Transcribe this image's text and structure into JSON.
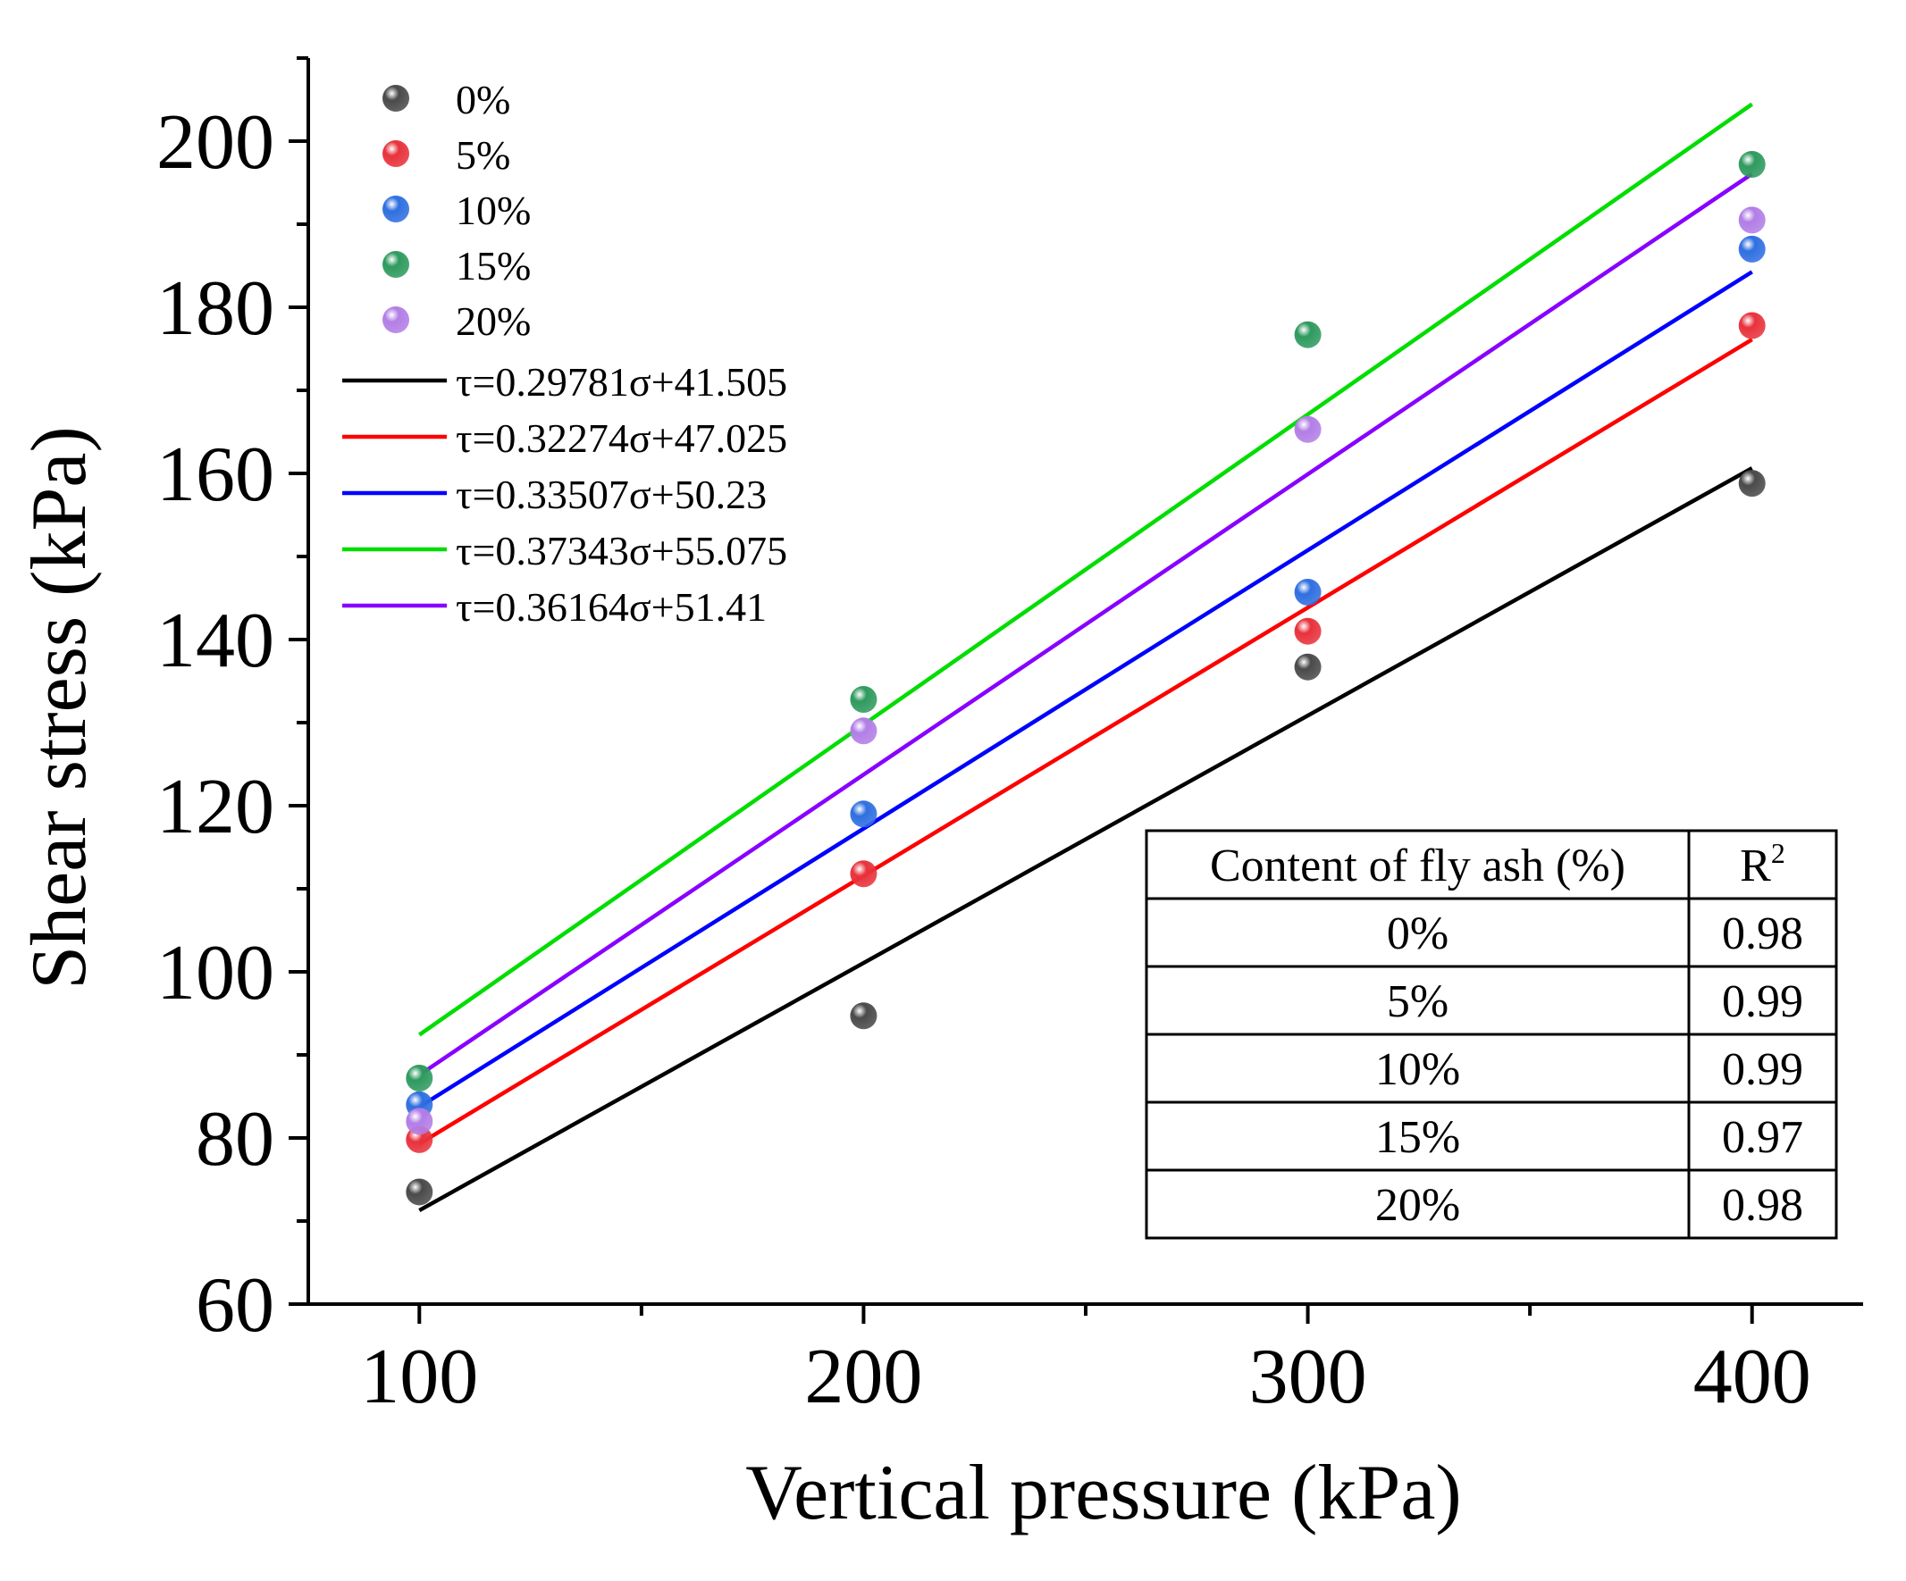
{
  "chart_data": {
    "type": "scatter",
    "xlabel": "Vertical pressure (kPa)",
    "ylabel": "Shear stress (kPa)",
    "xlim": [
      75,
      425
    ],
    "ylim": [
      60,
      210
    ],
    "x_ticks": [
      100,
      200,
      300,
      400
    ],
    "y_ticks": [
      60,
      80,
      100,
      120,
      140,
      160,
      180,
      200
    ],
    "y_minor_step": 10,
    "x": [
      100,
      200,
      300,
      400
    ],
    "series": [
      {
        "name": "0%",
        "color": "#4a4a4a",
        "values": [
          73.5,
          94.7,
          136.7,
          158.8
        ]
      },
      {
        "name": "5%",
        "color": "#e8323c",
        "values": [
          79.8,
          111.8,
          141.0,
          177.8
        ]
      },
      {
        "name": "10%",
        "color": "#2f6fe0",
        "values": [
          84.0,
          119.0,
          145.7,
          187.0
        ]
      },
      {
        "name": "15%",
        "color": "#2e9a5e",
        "values": [
          87.2,
          132.8,
          176.7,
          197.2
        ]
      },
      {
        "name": "20%",
        "color": "#b27ee6",
        "values": [
          82.0,
          129.0,
          165.3,
          190.5
        ]
      }
    ],
    "fits": [
      {
        "label": "τ=0.29781σ+41.505",
        "slope": 0.29781,
        "intercept": 41.505,
        "color": "#000000"
      },
      {
        "label": "τ=0.32274σ+47.025",
        "slope": 0.32274,
        "intercept": 47.025,
        "color": "#ff0000"
      },
      {
        "label": "τ=0.33507σ+50.23",
        "slope": 0.33507,
        "intercept": 50.23,
        "color": "#0000ff"
      },
      {
        "label": "τ=0.37343σ+55.075",
        "slope": 0.37343,
        "intercept": 55.075,
        "color": "#00dd00"
      },
      {
        "label": "τ=0.36164σ+51.41",
        "slope": 0.36164,
        "intercept": 51.41,
        "color": "#8800ff"
      }
    ],
    "legend_position": "top-left",
    "table": {
      "headers": [
        "Content of fly ash (%)",
        "R",
        "2"
      ],
      "rows": [
        [
          "0%",
          "0.98"
        ],
        [
          "5%",
          "0.99"
        ],
        [
          "10%",
          "0.99"
        ],
        [
          "15%",
          "0.97"
        ],
        [
          "20%",
          "0.98"
        ]
      ]
    }
  }
}
